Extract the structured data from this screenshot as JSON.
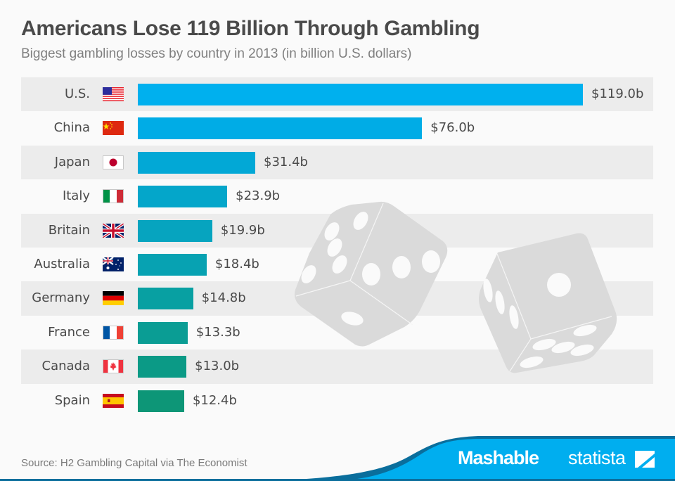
{
  "header": {
    "title": "Americans Lose 119 Billion Through Gambling",
    "subtitle": "Biggest gambling losses by country in 2013 (in billion U.S. dollars)"
  },
  "rows": [
    {
      "country": "U.S.",
      "flag": "us-flag-icon",
      "value": 119.0,
      "label": "$119.0b",
      "color": "#00b0ee"
    },
    {
      "country": "China",
      "flag": "china-flag-icon",
      "value": 76.0,
      "label": "$76.0b",
      "color": "#00ace6"
    },
    {
      "country": "Japan",
      "flag": "japan-flag-icon",
      "value": 31.4,
      "label": "$31.4b",
      "color": "#02a8d6"
    },
    {
      "country": "Italy",
      "flag": "italy-flag-icon",
      "value": 23.9,
      "label": "$23.9b",
      "color": "#04a6ca"
    },
    {
      "country": "Britain",
      "flag": "uk-flag-icon",
      "value": 19.9,
      "label": "$19.9b",
      "color": "#06a4bf"
    },
    {
      "country": "Australia",
      "flag": "australia-flag-icon",
      "value": 18.4,
      "label": "$18.4b",
      "color": "#07a2b2"
    },
    {
      "country": "Germany",
      "flag": "germany-flag-icon",
      "value": 14.8,
      "label": "$14.8b",
      "color": "#08a0a2"
    },
    {
      "country": "France",
      "flag": "france-flag-icon",
      "value": 13.3,
      "label": "$13.3b",
      "color": "#0a9d94"
    },
    {
      "country": "Canada",
      "flag": "canada-flag-icon",
      "value": 13.0,
      "label": "$13.0b",
      "color": "#0b9a86"
    },
    {
      "country": "Spain",
      "flag": "spain-flag-icon",
      "value": 12.4,
      "label": "$12.4b",
      "color": "#0d9677"
    }
  ],
  "footer": {
    "source": "Source: H2 Gambling Capital via The Economist",
    "brand_1": "Mashable",
    "brand_2": "statista",
    "wave_color": "#00aeef",
    "wave_edge_color": "#0a6e9c"
  },
  "chart_data": {
    "type": "bar",
    "orientation": "horizontal",
    "title": "Americans Lose 119 Billion Through Gambling",
    "subtitle": "Biggest gambling losses by country in 2013 (in billion U.S. dollars)",
    "categories": [
      "U.S.",
      "China",
      "Japan",
      "Italy",
      "Britain",
      "Australia",
      "Germany",
      "France",
      "Canada",
      "Spain"
    ],
    "values": [
      119.0,
      76.0,
      31.4,
      23.9,
      19.9,
      18.4,
      14.8,
      13.3,
      13.0,
      12.4
    ],
    "data_labels": [
      "$119.0b",
      "$76.0b",
      "$31.4b",
      "$23.9b",
      "$19.9b",
      "$18.4b",
      "$14.8b",
      "$13.3b",
      "$13.0b",
      "$12.4b"
    ],
    "xlabel": "",
    "ylabel": "",
    "unit": "billion U.S. dollars",
    "xlim": [
      0,
      119
    ],
    "grid": false,
    "legend": null,
    "source": "Source: H2 Gambling Capital via The Economist"
  }
}
